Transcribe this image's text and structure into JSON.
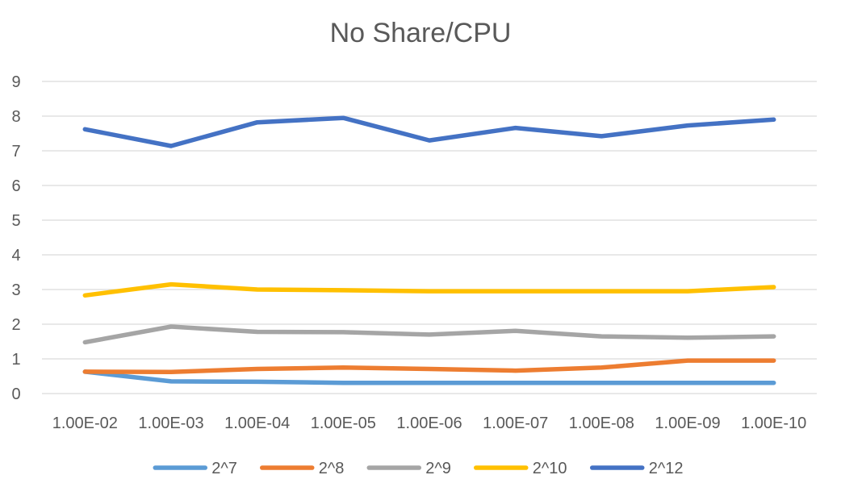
{
  "chart_data": {
    "type": "line",
    "title": "No Share/CPU",
    "xlabel": "",
    "ylabel": "",
    "categories": [
      "1.00E-02",
      "1.00E-03",
      "1.00E-04",
      "1.00E-05",
      "1.00E-06",
      "1.00E-07",
      "1.00E-08",
      "1.00E-09",
      "1.00E-10"
    ],
    "ylim": [
      0,
      9
    ],
    "yticks": [
      "0",
      "1",
      "2",
      "3",
      "4",
      "5",
      "6",
      "7",
      "8",
      "9"
    ],
    "grid": "horizontal",
    "legend_position": "bottom",
    "series": [
      {
        "name": "2^7",
        "color": "#5B9BD5",
        "values": [
          0.63,
          0.35,
          0.34,
          0.31,
          0.31,
          0.31,
          0.31,
          0.31,
          0.31
        ]
      },
      {
        "name": "2^8",
        "color": "#ED7D31",
        "values": [
          0.63,
          0.62,
          0.71,
          0.75,
          0.71,
          0.66,
          0.75,
          0.95,
          0.95
        ]
      },
      {
        "name": "2^9",
        "color": "#A5A5A5",
        "values": [
          1.48,
          1.93,
          1.78,
          1.77,
          1.7,
          1.81,
          1.65,
          1.61,
          1.65
        ]
      },
      {
        "name": "2^10",
        "color": "#FFC000",
        "values": [
          2.83,
          3.15,
          3.0,
          2.98,
          2.95,
          2.95,
          2.95,
          2.95,
          3.07
        ]
      },
      {
        "name": "2^12",
        "color": "#4472C4",
        "values": [
          7.62,
          7.14,
          7.82,
          7.95,
          7.3,
          7.66,
          7.42,
          7.73,
          7.9
        ]
      }
    ]
  }
}
